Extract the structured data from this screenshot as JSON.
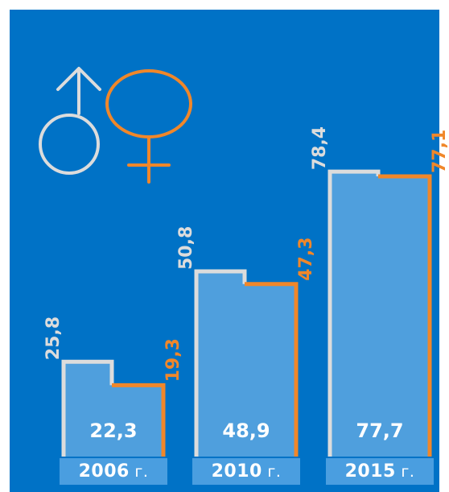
{
  "colors": {
    "background": "#0072c6",
    "male": "#dcdcdc",
    "female": "#f0872a",
    "bar_fill": "#4f9fdd",
    "year_band": "#4a9ee0"
  },
  "icons": {
    "male": "male-symbol-icon",
    "female": "female-symbol-icon"
  },
  "chart_data": {
    "type": "bar",
    "categories": [
      "2006",
      "2010",
      "2015"
    ],
    "category_suffix": "г.",
    "series": [
      {
        "values": [
          25.8,
          50.8,
          78.4
        ],
        "labels": [
          "25,8",
          "50,8",
          "78,4"
        ],
        "color": "#dcdcdc"
      },
      {
        "values": [
          19.3,
          47.3,
          77.1
        ],
        "labels": [
          "19,3",
          "47,3",
          "77,1"
        ],
        "color": "#f0872a"
      },
      {
        "values": [
          22.3,
          48.9,
          77.7
        ],
        "labels": [
          "22,3",
          "48,9",
          "77,7"
        ]
      }
    ],
    "ylim": [
      0,
      80
    ],
    "grid": false,
    "legend": "top-left"
  }
}
